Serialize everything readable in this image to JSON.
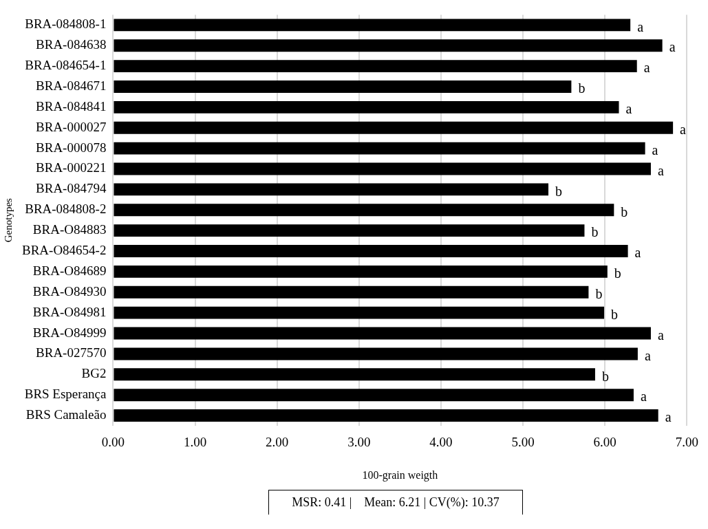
{
  "chart_data": {
    "type": "bar",
    "orientation": "horizontal",
    "ylabel": "Genotypes",
    "xlabel": "100-grain weigth",
    "categories": [
      "BRA-084808-1",
      "BRA-084638",
      "BRA-084654-1",
      "BRA-084671",
      "BRA-084841",
      "BRA-000027",
      "BRA-000078",
      "BRA-000221",
      "BRA-084794",
      "BRA-084808-2",
      "BRA-O84883",
      "BRA-O84654-2",
      "BRA-O84689",
      "BRA-O84930",
      "BRA-O84981",
      "BRA-O84999",
      "BRA-027570",
      "BG2",
      "BRS Esperança",
      "BRS Camaleão"
    ],
    "values": [
      6.31,
      6.7,
      6.39,
      5.59,
      6.17,
      6.83,
      6.49,
      6.56,
      5.31,
      6.11,
      5.75,
      6.28,
      6.03,
      5.8,
      5.99,
      6.56,
      6.4,
      5.88,
      6.35,
      6.65
    ],
    "value_labels": [
      "a",
      "a",
      "a",
      "b",
      "a",
      "a",
      "a",
      "a",
      "b",
      "b",
      "b",
      "a",
      "b",
      "b",
      "b",
      "a",
      "a",
      "b",
      "a",
      "a"
    ],
    "color": "#000000",
    "xlim": [
      0,
      7
    ],
    "xticks": [
      {
        "value": 0,
        "label": "0.00"
      },
      {
        "value": 1,
        "label": "1.00"
      },
      {
        "value": 2,
        "label": "2.00"
      },
      {
        "value": 3,
        "label": "3.00"
      },
      {
        "value": 4,
        "label": "4.00"
      },
      {
        "value": 5,
        "label": "5.00"
      },
      {
        "value": 6,
        "label": "6.00"
      },
      {
        "value": 7,
        "label": "7.00"
      }
    ],
    "grid": "x",
    "annotations": [
      "MSR: 0.41 |    Mean: 6.21 | CV(%): 10.37"
    ]
  }
}
